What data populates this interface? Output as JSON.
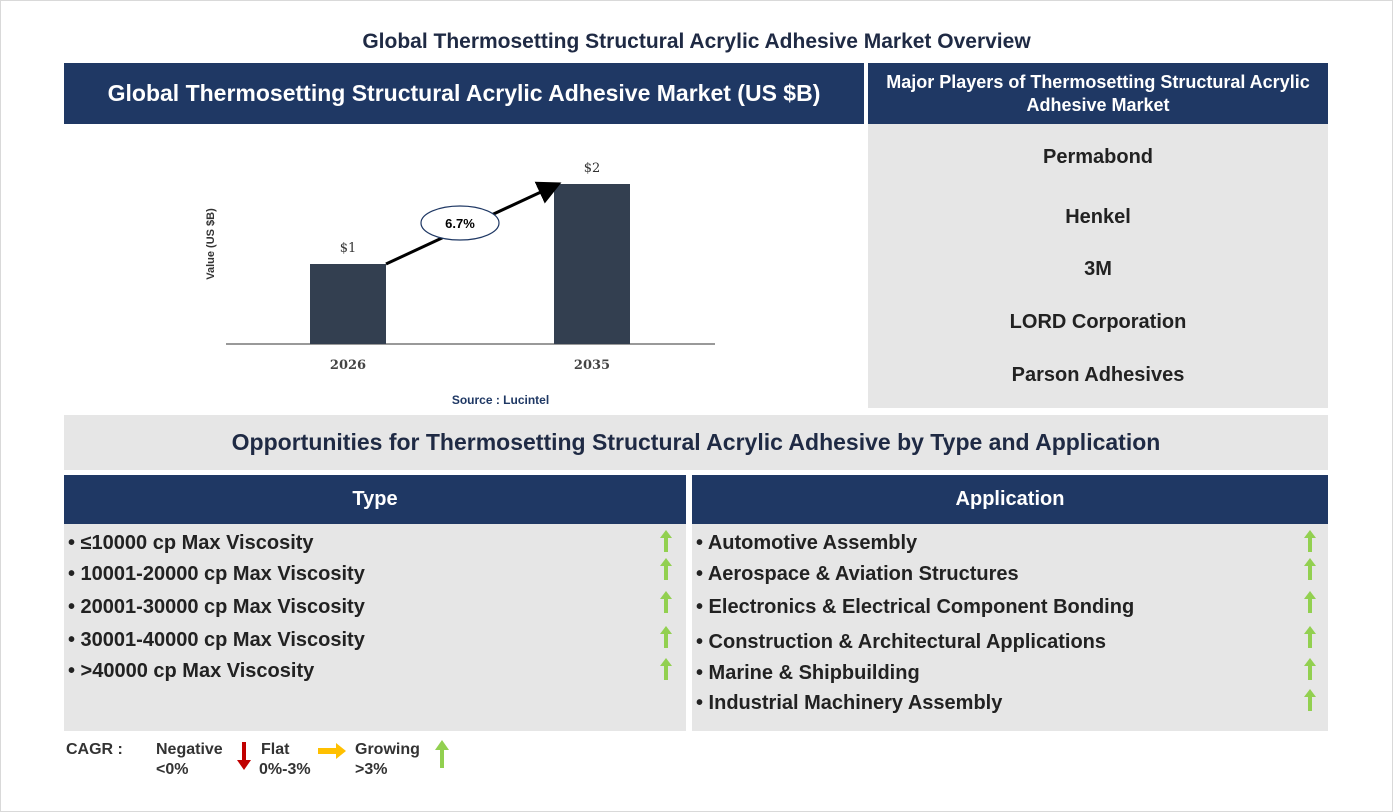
{
  "title": "Global Thermosetting Structural Acrylic Adhesive Market Overview",
  "left_header": "Global Thermosetting Structural Acrylic Adhesive Market (US $B)",
  "right_header": "Major Players of Thermosetting Structural Acrylic Adhesive Market",
  "players": [
    "Permabond",
    "Henkel",
    "3M",
    "LORD Corporation",
    "Parson Adhesives"
  ],
  "chart_data": {
    "type": "bar",
    "categories": [
      "2026",
      "2035"
    ],
    "values": [
      1,
      2
    ],
    "data_labels": [
      "$1",
      "$2"
    ],
    "ylabel": "Value (US $B)",
    "cagr_label": "6.7%",
    "bar_color": "#333f50",
    "source": "Source : Lucintel"
  },
  "opportunities_title": "Opportunities for Thermosetting Structural Acrylic Adhesive by Type and Application",
  "type_header": "Type",
  "application_header": "Application",
  "type_items": [
    "• ≤10000 cp Max Viscosity",
    "• 10001-20000 cp Max Viscosity",
    "• 20001-30000 cp Max Viscosity",
    "• 30001-40000 cp Max Viscosity",
    "• >40000 cp Max Viscosity"
  ],
  "application_items": [
    "• Automotive Assembly",
    "• Aerospace & Aviation Structures",
    "• Electronics & Electrical Component Bonding",
    "• Construction & Architectural Applications",
    "• Marine & Shipbuilding",
    "• Industrial Machinery Assembly"
  ],
  "legend": {
    "cagr": "CAGR :",
    "negative": "Negative",
    "negative_range": "<0%",
    "flat": "Flat",
    "flat_range": "0%-3%",
    "growing": "Growing",
    "growing_range": ">3%"
  },
  "colors": {
    "navy": "#1f3864",
    "panel_gray": "#e6e6e6",
    "growing_green": "#92d050",
    "negative_red": "#c00000",
    "flat_orange": "#ffc000"
  }
}
